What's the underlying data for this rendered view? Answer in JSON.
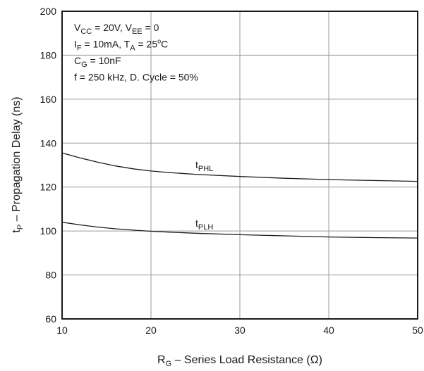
{
  "chart_data": {
    "type": "line",
    "x_ticks": [
      10,
      20,
      30,
      40,
      50
    ],
    "y_ticks": [
      60,
      80,
      100,
      120,
      140,
      160,
      180,
      200
    ],
    "xlim": [
      10,
      50
    ],
    "ylim": [
      60,
      200
    ],
    "grid": true,
    "xlabel": {
      "main": "R",
      "sub": "G",
      "rest": " – Series Load Resistance (Ω)"
    },
    "ylabel": {
      "main": "t",
      "sub": "P",
      "rest": " – Propagation Delay (ns)"
    },
    "annotations": [
      {
        "parts": [
          {
            "t": "V"
          },
          {
            "t": "CC",
            "s": "sub"
          },
          {
            "t": " = 20V, V"
          },
          {
            "t": "EE",
            "s": "sub"
          },
          {
            "t": " = 0"
          }
        ]
      },
      {
        "parts": [
          {
            "t": "I"
          },
          {
            "t": "F",
            "s": "sub"
          },
          {
            "t": " = 10mA, T"
          },
          {
            "t": "A",
            "s": "sub"
          },
          {
            "t": " = 25"
          },
          {
            "t": "o",
            "s": "sup"
          },
          {
            "t": "C"
          }
        ]
      },
      {
        "parts": [
          {
            "t": "C"
          },
          {
            "t": "G",
            "s": "sub"
          },
          {
            "t": " = 10nF"
          }
        ]
      },
      {
        "parts": [
          {
            "t": "f = 250 kHz, D. Cycle = 50%"
          }
        ]
      }
    ],
    "series": [
      {
        "name_main": "t",
        "name_sub": "PHL",
        "label_at": [
          25,
          128.5
        ],
        "x": [
          10,
          12,
          14,
          16,
          18,
          20,
          22,
          25,
          30,
          35,
          40,
          45,
          50
        ],
        "y": [
          135.5,
          133.3,
          131.3,
          129.6,
          128.3,
          127.3,
          126.6,
          125.8,
          124.8,
          124.0,
          123.4,
          123.0,
          122.6
        ]
      },
      {
        "name_main": "t",
        "name_sub": "PLH",
        "label_at": [
          25,
          102
        ],
        "x": [
          10,
          12,
          14,
          16,
          18,
          20,
          22,
          25,
          30,
          35,
          40,
          45,
          50
        ],
        "y": [
          104.0,
          102.8,
          101.8,
          101.0,
          100.4,
          99.9,
          99.5,
          99.0,
          98.3,
          97.8,
          97.3,
          97.0,
          96.8
        ]
      }
    ]
  }
}
